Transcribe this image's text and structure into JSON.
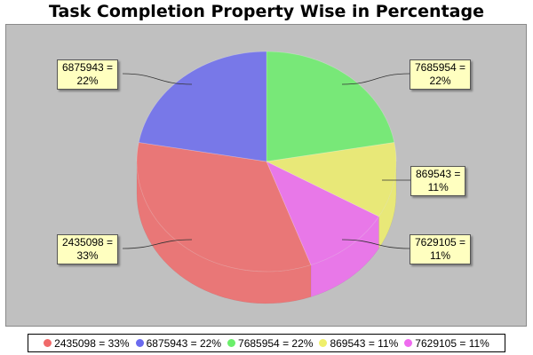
{
  "chart_data": {
    "type": "pie",
    "title": "Task Completion Property Wise in Percentage",
    "slices": [
      {
        "label": "2435098",
        "value": 33,
        "display": "2435098 = 33%",
        "line1": "2435098 =",
        "line2": "33%",
        "color": "#f06a6a"
      },
      {
        "label": "6875943",
        "value": 22,
        "display": "6875943 = 22%",
        "line1": "6875943 =",
        "line2": "22%",
        "color": "#6b6bef"
      },
      {
        "label": "7685954",
        "value": 22,
        "display": "7685954 = 22%",
        "line1": "7685954 =",
        "line2": "22%",
        "color": "#6bef6b"
      },
      {
        "label": "869543",
        "value": 11,
        "display": "869543 = 11%",
        "line1": "869543 =",
        "line2": "11%",
        "color": "#efef6b"
      },
      {
        "label": "7629105",
        "value": 11,
        "display": "7629105 = 11%",
        "line1": "7629105 =",
        "line2": "11%",
        "color": "#ef6bef"
      }
    ],
    "legend_position": "bottom",
    "pie_style": "3d-transparent",
    "label_style": "callout"
  }
}
